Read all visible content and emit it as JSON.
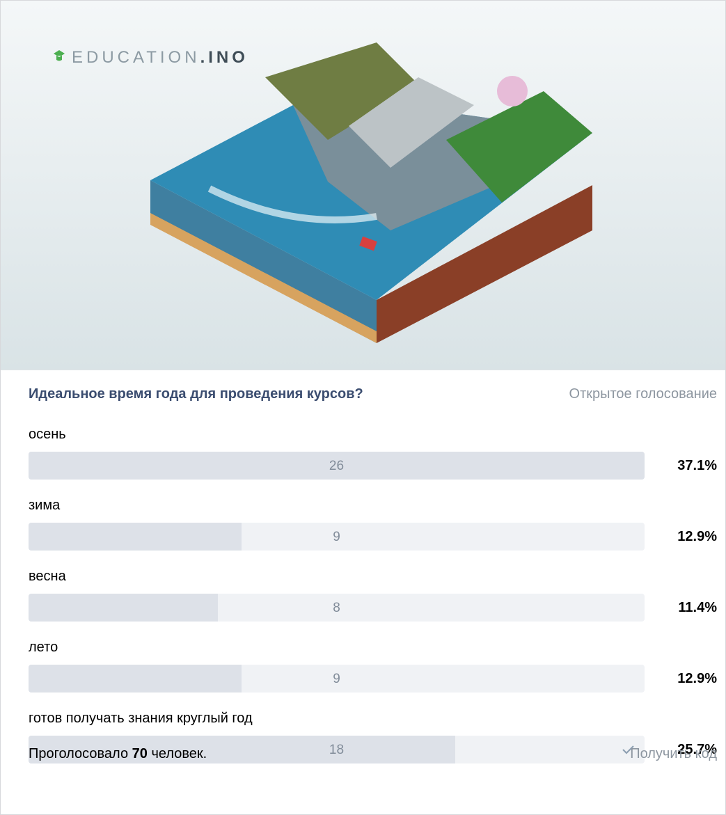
{
  "header": {
    "logo_main": "EDUCATION",
    "logo_bold": ".INO"
  },
  "poll": {
    "question": "Идеальное время года для проведения курсов?",
    "kind": "Открытое голосование",
    "options": [
      {
        "label": "осень",
        "votes": 26,
        "percent": "37.1%",
        "checked": false
      },
      {
        "label": "зима",
        "votes": 9,
        "percent": "12.9%",
        "checked": false
      },
      {
        "label": "весна",
        "votes": 8,
        "percent": "11.4%",
        "checked": false
      },
      {
        "label": "лето",
        "votes": 9,
        "percent": "12.9%",
        "checked": false
      },
      {
        "label": "готов получать знания круглый год",
        "votes": 18,
        "percent": "25.7%",
        "checked": true
      }
    ]
  },
  "footer": {
    "voted_prefix": "Проголосовало",
    "voted_count": 70,
    "voted_suffix": "человек.",
    "get_code": "Получить код"
  }
}
